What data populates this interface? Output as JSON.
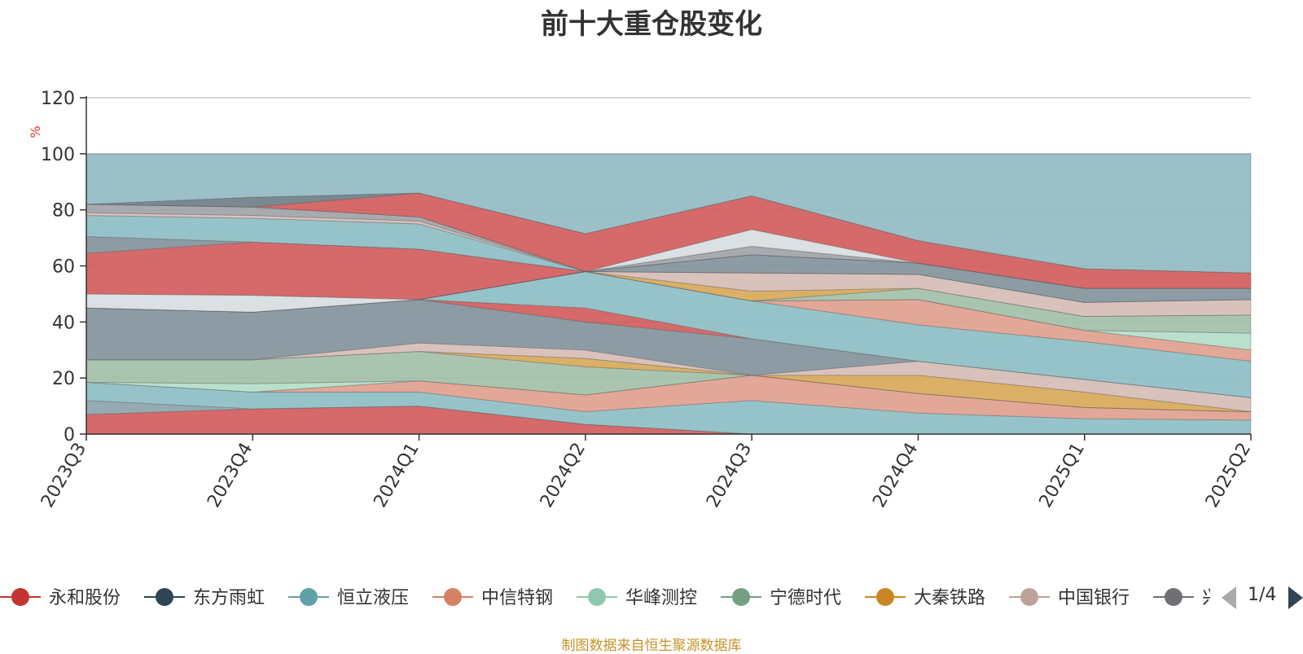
{
  "chart_data": {
    "type": "area",
    "title": "前十大重仓股变化",
    "ylabel": "%",
    "ylim": [
      0,
      120
    ],
    "yticks": [
      0,
      20,
      40,
      60,
      80,
      100,
      120
    ],
    "grid": true,
    "categories": [
      "2023Q3",
      "2023Q4",
      "2024Q1",
      "2024Q2",
      "2024Q3",
      "2024Q4",
      "2025Q1",
      "2025Q2"
    ],
    "layers": [
      {
        "name": "永和股份",
        "color": "#d35c5c",
        "lower": [
          0,
          0,
          0,
          0,
          0,
          0,
          0,
          0
        ],
        "upper": [
          7,
          9,
          10,
          3.5,
          0,
          0,
          0,
          0
        ]
      },
      {
        "color": "#8da3ad",
        "lower": [
          7,
          9,
          10,
          3.5,
          0,
          0,
          0,
          0
        ],
        "upper": [
          12,
          9,
          10,
          3.5,
          0,
          0,
          0,
          0
        ]
      },
      {
        "color": "#8dbdc4",
        "lower": [
          12,
          9,
          10,
          3.5,
          0,
          0,
          0,
          0
        ],
        "upper": [
          18.5,
          15,
          15,
          8,
          12,
          7.5,
          5.5,
          5
        ]
      },
      {
        "color": "#e1a08e",
        "lower": [
          18.5,
          15,
          15,
          8,
          12,
          7.5,
          5.5,
          5
        ],
        "upper": [
          18.5,
          15,
          19,
          14,
          21,
          14.5,
          9.5,
          8
        ]
      },
      {
        "color": "#b3dcc9",
        "lower": [
          18.5,
          15,
          19,
          14,
          21,
          14.5,
          9.5,
          8
        ],
        "upper": [
          18.5,
          18,
          19,
          14,
          21,
          14.5,
          9.5,
          8
        ]
      },
      {
        "color": "#a2bfa8",
        "lower": [
          18.5,
          18,
          19,
          14,
          21,
          14.5,
          9.5,
          8
        ],
        "upper": [
          26.5,
          26.5,
          29.5,
          24,
          21,
          14.5,
          9.5,
          8
        ]
      },
      {
        "color": "#d9a85a",
        "lower": [
          26.5,
          26.5,
          29.5,
          24,
          21,
          14.5,
          9.5,
          8
        ],
        "upper": [
          26.5,
          26.5,
          29.5,
          27,
          21,
          21,
          15,
          8
        ]
      },
      {
        "color": "#d6bcb6",
        "lower": [
          26.5,
          26.5,
          29.5,
          27,
          21,
          21,
          15,
          8
        ],
        "upper": [
          26.5,
          26.5,
          32.5,
          30,
          21,
          26,
          19.5,
          13
        ]
      },
      {
        "color": "#83949c",
        "lower": [
          26.5,
          26.5,
          32.5,
          30,
          21,
          26,
          19.5,
          13
        ],
        "upper": [
          45,
          43.5,
          48,
          40,
          34,
          26,
          19.5,
          13
        ]
      },
      {
        "color": "#d35c5c",
        "lower": [
          45,
          43.5,
          48,
          40,
          34,
          26,
          19.5,
          13
        ],
        "upper": [
          45,
          43.5,
          48,
          45,
          34,
          26,
          19.5,
          13
        ]
      },
      {
        "color": "#8dbdc4",
        "lower": [
          45,
          43.5,
          48,
          45,
          34,
          26,
          19.5,
          13
        ],
        "upper": [
          45,
          43.5,
          48,
          58,
          47.5,
          39,
          33,
          26
        ]
      },
      {
        "color": "#e1a08e",
        "lower": [
          45,
          43.5,
          48,
          58,
          47.5,
          39,
          33,
          26
        ],
        "upper": [
          45,
          43.5,
          48,
          58,
          47.5,
          48,
          37,
          30
        ]
      },
      {
        "color": "#b3dcc9",
        "lower": [
          45,
          43.5,
          48,
          58,
          47.5,
          48,
          37,
          30
        ],
        "upper": [
          45,
          43.5,
          48,
          58,
          47.5,
          48,
          37,
          36
        ]
      },
      {
        "color": "#a2bfa8",
        "lower": [
          45,
          43.5,
          48,
          58,
          47.5,
          48,
          37,
          36
        ],
        "upper": [
          45,
          43.5,
          48,
          58,
          47.5,
          52,
          42,
          42.5
        ]
      },
      {
        "color": "#d9a85a",
        "lower": [
          45,
          43.5,
          48,
          58,
          47.5,
          52,
          42,
          42.5
        ],
        "upper": [
          45,
          43.5,
          48,
          58,
          51,
          52,
          42,
          42.5
        ]
      },
      {
        "color": "#d6bcb6",
        "lower": [
          45,
          43.5,
          48,
          58,
          51,
          52,
          42,
          42.5
        ],
        "upper": [
          45,
          43.5,
          48,
          58,
          57.5,
          57,
          47,
          48
        ]
      },
      {
        "color": "#d8dde2",
        "lower": [
          45,
          43.5,
          48,
          58,
          57.5,
          57,
          47,
          48
        ],
        "upper": [
          50,
          49.5,
          48,
          58,
          57.5,
          57,
          47,
          48
        ]
      },
      {
        "color": "#d35c5c",
        "lower": [
          50,
          49.5,
          48,
          58,
          57.5,
          57,
          47,
          48
        ],
        "upper": [
          64.5,
          68.5,
          66,
          58,
          57.5,
          57,
          47,
          48
        ]
      },
      {
        "color": "#83949c",
        "lower": [
          64.5,
          68.5,
          66,
          58,
          57.5,
          57,
          47,
          48
        ],
        "upper": [
          70.5,
          68.5,
          66,
          58,
          64,
          61,
          52,
          52
        ]
      },
      {
        "color": "#8dbdc4",
        "lower": [
          70.5,
          68.5,
          66,
          58,
          64,
          61,
          52,
          52
        ],
        "upper": [
          78,
          77,
          75,
          58,
          64,
          61,
          52,
          52
        ]
      },
      {
        "color": "#d6bcb6",
        "lower": [
          78,
          77,
          75,
          58,
          64,
          61,
          52,
          52
        ],
        "upper": [
          79,
          78,
          76,
          58,
          64,
          61,
          52,
          52
        ]
      },
      {
        "color": "#a0a4a8",
        "lower": [
          79,
          78,
          76,
          58,
          64,
          61,
          52,
          52
        ],
        "upper": [
          82,
          81,
          77.5,
          58,
          67,
          61,
          52,
          52
        ]
      },
      {
        "color": "#d8dde2",
        "lower": [
          82,
          81,
          77.5,
          58,
          67,
          61,
          52,
          52
        ],
        "upper": [
          82,
          81,
          77.5,
          58,
          73,
          61,
          52,
          52
        ]
      },
      {
        "color": "#d35c5c",
        "lower": [
          82,
          81,
          77.5,
          58,
          73,
          61,
          52,
          52
        ],
        "upper": [
          82,
          81,
          86,
          71.5,
          85,
          69,
          59,
          57.5
        ]
      },
      {
        "color": "#6e7e88",
        "lower": [
          82,
          81,
          86,
          71.5,
          85,
          69,
          59,
          57.5
        ],
        "upper": [
          82,
          84.5,
          86,
          71.5,
          85,
          69,
          59,
          57.5
        ]
      },
      {
        "color": "#92bbc2",
        "lower": [
          82,
          84.5,
          86,
          71.5,
          85,
          69,
          59,
          57.5
        ],
        "upper": [
          100,
          100,
          100,
          100,
          100,
          100,
          100,
          100
        ]
      }
    ],
    "legend": {
      "placement": "bottom",
      "page": "1/4",
      "items": [
        {
          "name": "永和股份",
          "color": "#c23531"
        },
        {
          "name": "东方雨虹",
          "color": "#2f4554"
        },
        {
          "name": "恒立液压",
          "color": "#61a0a8"
        },
        {
          "name": "中信特钢",
          "color": "#d48265"
        },
        {
          "name": "华峰测控",
          "color": "#91c7ae"
        },
        {
          "name": "宁德时代",
          "color": "#749f83"
        },
        {
          "name": "大秦铁路",
          "color": "#ca8622"
        },
        {
          "name": "中国银行",
          "color": "#bda29a"
        },
        {
          "name": "兴",
          "color": "#6e7074"
        }
      ]
    }
  },
  "source_note": "制图数据来自恒生聚源数据库"
}
